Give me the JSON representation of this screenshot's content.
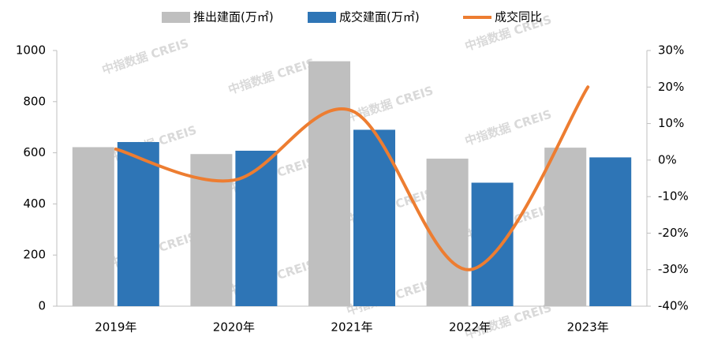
{
  "chart_data": {
    "type": "bar_line",
    "categories": [
      "2019年",
      "2020年",
      "2021年",
      "2022年",
      "2023年"
    ],
    "series": [
      {
        "name": "推出建面(万㎡)",
        "color": "#bfbfbf",
        "type": "bar",
        "values": [
          622,
          595,
          958,
          577,
          620
        ]
      },
      {
        "name": "成交建面(万㎡)",
        "color": "#2e75b6",
        "type": "bar",
        "values": [
          642,
          608,
          690,
          483,
          582
        ]
      },
      {
        "name": "成交同比",
        "color": "#ed7d31",
        "type": "line",
        "axis": "y2",
        "values": [
          3,
          -5.5,
          13.5,
          -30,
          20
        ]
      }
    ],
    "ylim": [
      0,
      1000
    ],
    "yticks": [
      0,
      200,
      400,
      600,
      800,
      1000
    ],
    "y2lim": [
      -40,
      30
    ],
    "y2ticks": [
      {
        "value": -40,
        "label": "-40%"
      },
      {
        "value": -30,
        "label": "-30%"
      },
      {
        "value": -20,
        "label": "-20%"
      },
      {
        "value": -10,
        "label": "-10%"
      },
      {
        "value": 0,
        "label": "0%"
      },
      {
        "value": 10,
        "label": "10%"
      },
      {
        "value": 20,
        "label": "20%"
      },
      {
        "value": 30,
        "label": "30%"
      }
    ],
    "legend": "top",
    "watermark": "中指数据 CREIS"
  }
}
